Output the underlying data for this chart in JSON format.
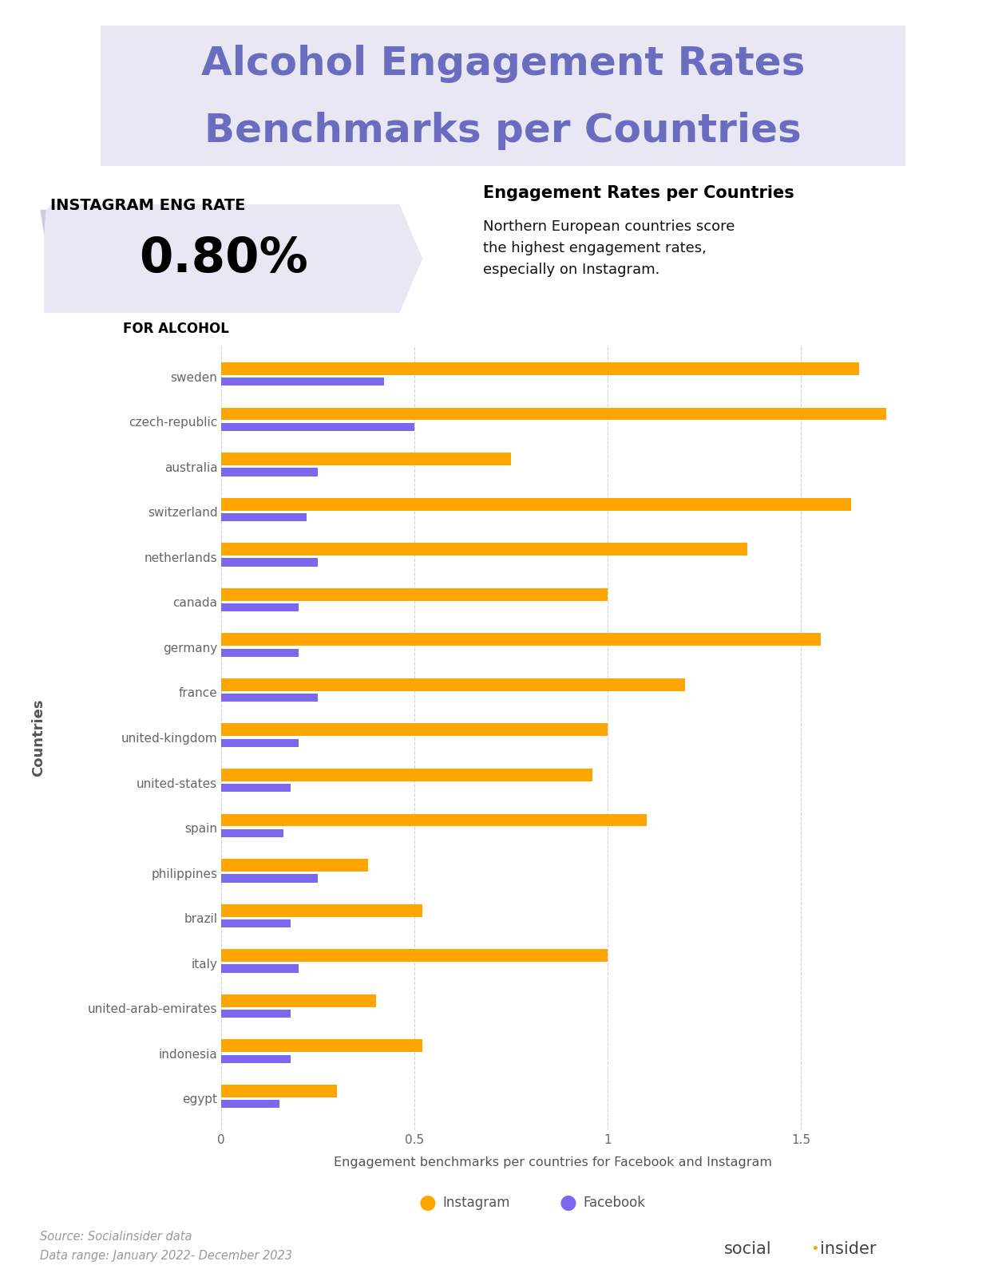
{
  "title_line1": "Alcohol Engagement Rates",
  "title_line2": "Benchmarks per Countries",
  "title_color": "#6B6BBF",
  "title_bg_color": "#E8E8F5",
  "instagram_eng_rate_label": "INSTAGRAM ENG RATE",
  "instagram_eng_rate_value": "0.80%",
  "for_alcohol_label": "FOR ALCOHOL",
  "engagement_title": "Engagement Rates per Countries",
  "engagement_text": "Northern European countries score\nthe highest engagement rates,\nespecially on Instagram.",
  "chart_subtitle": "Engagement benchmarks per countries for Facebook and Instagram",
  "source_text": "Source: Socialinsider data\nData range: January 2022- December 2023",
  "ylabel": "Countries",
  "categories": [
    "sweden",
    "czech-republic",
    "australia",
    "switzerland",
    "netherlands",
    "canada",
    "germany",
    "france",
    "united-kingdom",
    "united-states",
    "spain",
    "philippines",
    "brazil",
    "italy",
    "united-arab-emirates",
    "indonesia",
    "egypt"
  ],
  "instagram_values": [
    1.65,
    1.72,
    0.75,
    1.63,
    1.36,
    1.0,
    1.55,
    1.2,
    1.0,
    0.96,
    1.1,
    0.38,
    0.52,
    1.0,
    0.4,
    0.52,
    0.3
  ],
  "facebook_values": [
    0.42,
    0.5,
    0.25,
    0.22,
    0.25,
    0.2,
    0.2,
    0.25,
    0.2,
    0.18,
    0.16,
    0.25,
    0.18,
    0.2,
    0.18,
    0.18,
    0.15
  ],
  "instagram_color": "#FFA500",
  "facebook_color": "#7B68EE",
  "bg_color": "#FFFFFF",
  "xlim_max": 1.9,
  "xticks": [
    0,
    0.5,
    1,
    1.5
  ],
  "ig_bar_height": 0.28,
  "fb_bar_height": 0.18,
  "legend_instagram": "Instagram",
  "legend_facebook": "Facebook"
}
